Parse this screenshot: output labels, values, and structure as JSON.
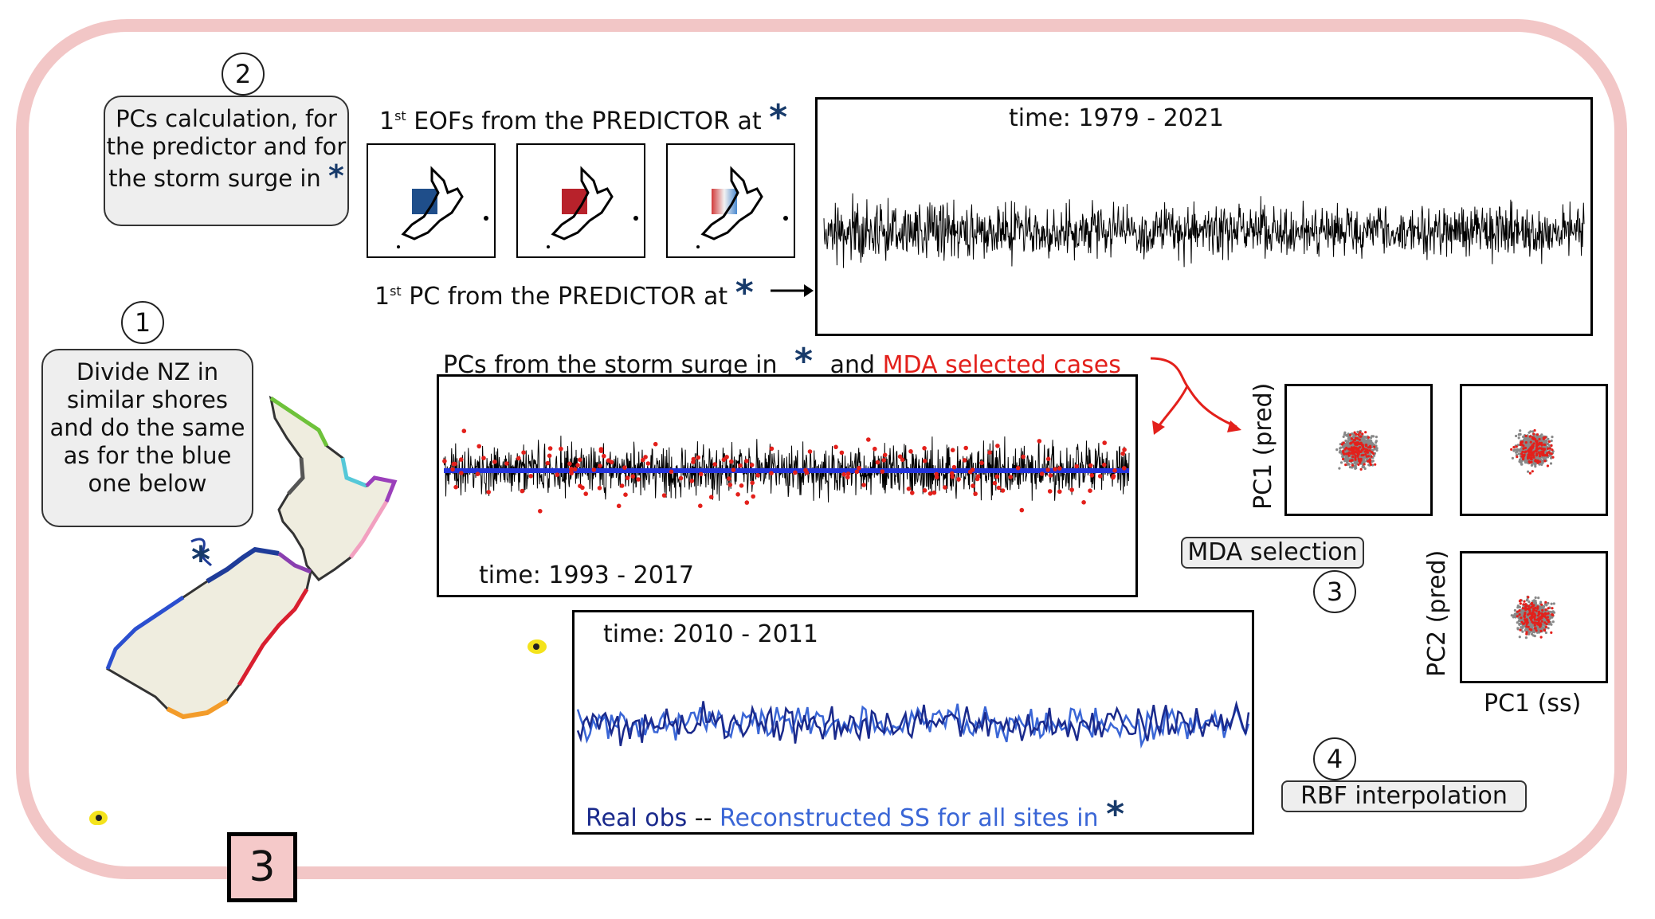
{
  "colors": {
    "frame": "#f2c6c6",
    "star": "#173a6a",
    "red": "#e3201b",
    "real_obs": "#1a2a8c",
    "reconstructed": "#3a66d6"
  },
  "steps": {
    "s1": {
      "num": "1",
      "text": "Divide NZ in similar shores and do the same as for the blue one below"
    },
    "s2": {
      "num": "2",
      "text": "PCs calculation, for the predictor and for the storm surge in"
    },
    "s3": {
      "num": "3",
      "label": "MDA selection"
    },
    "s4": {
      "num": "4",
      "label": "RBF interpolation"
    }
  },
  "eof": {
    "label_sup": "st",
    "label_main": "EOFs from the PREDICTOR at",
    "label_prefix": "1"
  },
  "pc1": {
    "label_sup": "st",
    "label_main": "PC from the PREDICTOR at",
    "label_prefix": "1",
    "time": "time: 1979 - 2021"
  },
  "surge": {
    "label": "PCs from the storm surge in",
    "and": "and",
    "mda": "MDA selected cases",
    "time": "time: 1993 - 2017"
  },
  "recon": {
    "time": "time: 2010 - 2011",
    "real": "Real obs",
    "sep": "--",
    "reconstructed": "Reconstructed SS for all sites in"
  },
  "scatter": {
    "y1": "PC1 (pred)",
    "y2": "PC2 (pred)",
    "x": "PC1 (ss)"
  },
  "star_symbol": "*",
  "page_number": "3"
}
